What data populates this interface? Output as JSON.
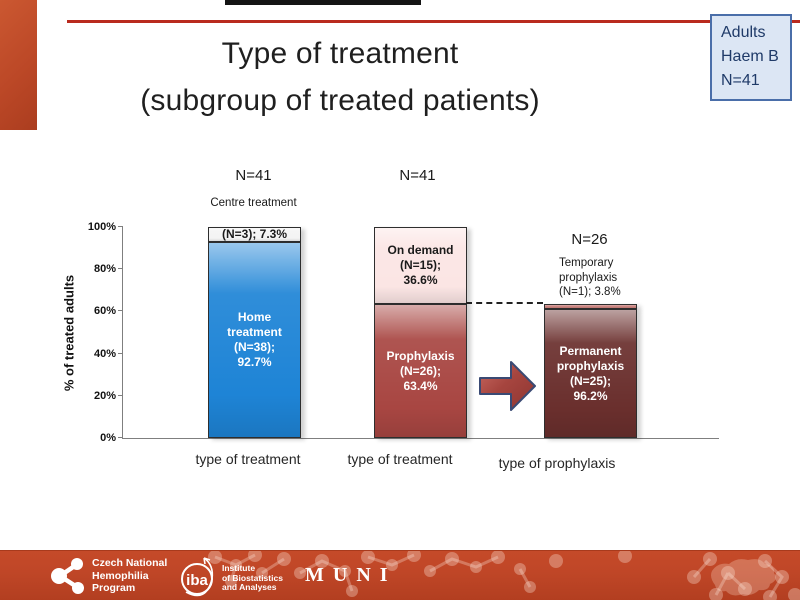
{
  "slide": {
    "title_line1": "Type of treatment",
    "title_line2": "(subgroup of treated patients)"
  },
  "badge": {
    "lines": [
      "Adults",
      "Haem B",
      "N=41"
    ],
    "bg": "#DCE6F4",
    "border_color": "#4A6EA9",
    "text_color": "#1F3A68"
  },
  "chart_data": {
    "type": "bar",
    "stacked": true,
    "ylabel": "% of treated adults",
    "ylim": [
      0,
      100
    ],
    "yticks": [
      "0%",
      "20%",
      "40%",
      "60%",
      "80%",
      "100%"
    ],
    "grid": false,
    "categories": [
      "type of treatment",
      "type of treatment",
      "type of prophylaxis"
    ],
    "bars": [
      {
        "name": "treatment-setting-bar",
        "n_label": "N=41",
        "above_label": "Centre treatment",
        "segments_top_down": [
          {
            "name": "centre-treatment-segment",
            "lines": [
              "(N=3); 7.3%"
            ],
            "n": 3,
            "value_pct": 7.3,
            "axis_span": 7.3,
            "color": "#F4F4F4",
            "text_color": "#1A1A1A"
          },
          {
            "name": "home-treatment-segment",
            "lines": [
              "Home",
              "treatment",
              "(N=38);",
              "92.7%"
            ],
            "n": 38,
            "value_pct": 92.7,
            "axis_span": 92.7,
            "color": "#1E84D6",
            "text_color": "#FFFFFF"
          }
        ]
      },
      {
        "name": "treatment-regimen-bar",
        "n_label": "N=41",
        "above_label": "",
        "segments_top_down": [
          {
            "name": "on-demand-segment",
            "lines": [
              "On demand",
              "(N=15);",
              "36.6%"
            ],
            "n": 15,
            "value_pct": 36.6,
            "axis_span": 36.6,
            "color": "#FBE5E4",
            "text_color": "#1A1A1A"
          },
          {
            "name": "prophylaxis-segment",
            "lines": [
              "Prophylaxis",
              "(N=26);",
              "63.4%"
            ],
            "n": 26,
            "value_pct": 63.4,
            "axis_span": 63.4,
            "color": "#A84642",
            "text_color": "#FFFFFF"
          }
        ]
      },
      {
        "name": "prophylaxis-type-bar",
        "n_label": "N=26",
        "above_label": "Temporary prophylaxis (N=1); 3.8%",
        "segments_top_down": [
          {
            "name": "temporary-prophylaxis-segment",
            "lines": [],
            "n": 1,
            "value_pct": 3.8,
            "axis_span": 2.4,
            "color": "#C9807C",
            "text_color": "#1A1A1A"
          },
          {
            "name": "permanent-prophylaxis-segment",
            "lines": [
              "Permanent",
              "prophylaxis",
              "(N=25);",
              "96.2%"
            ],
            "n": 25,
            "value_pct": 96.2,
            "axis_span": 61.0,
            "color": "#6A2F2D",
            "text_color": "#FFFFFF"
          }
        ]
      }
    ],
    "annotations": {
      "dashed_connector_level_pct": 63.4,
      "arrow": "red block arrow from regimen bar to prophylaxis bar"
    }
  },
  "footer": {
    "bg": "#BF4627",
    "logo1_lines": [
      "Czech National",
      "Hemophilia",
      "Program"
    ],
    "logo2_name": "iba",
    "logo2_lines": [
      "Institute",
      "of Biostatistics",
      "and Analyses"
    ],
    "logo3": "MUNI"
  },
  "colors": {
    "accent_rule": "#B92A1E",
    "left_accent": "#BC4827",
    "arrow_fill": "#A6453F",
    "arrow_border": "#3A4A74",
    "bar_blue": "#1E84D6",
    "bar_brick_red": "#A84642",
    "bar_pink": "#FBE5E4",
    "bar_maroon": "#6A2F2D"
  }
}
